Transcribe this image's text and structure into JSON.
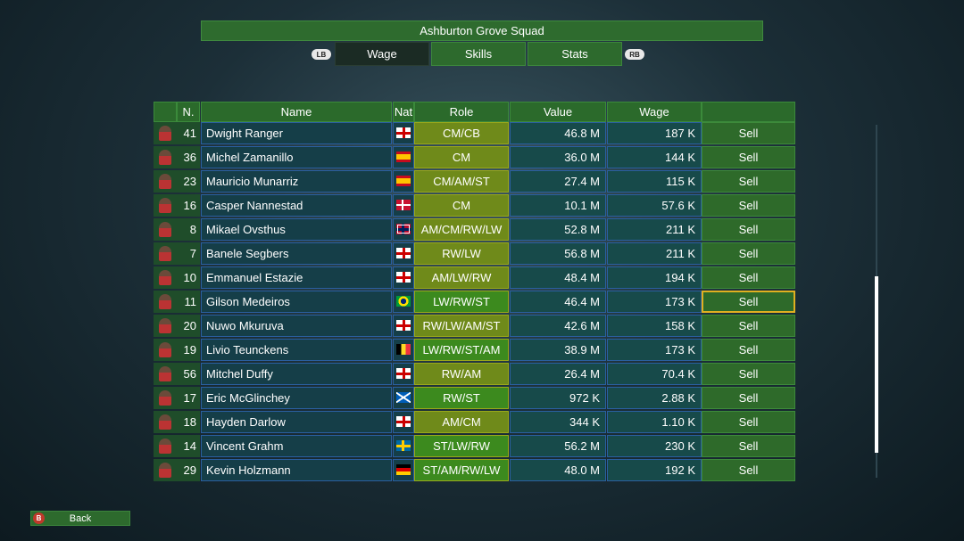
{
  "header": {
    "title": "Ashburton Grove Squad"
  },
  "bumpers": [
    "LB",
    "RB"
  ],
  "tabs": [
    "Wage",
    "Skills",
    "Stats"
  ],
  "table": {
    "columns": [
      "N.",
      "Name",
      "Nat",
      "Role",
      "Value",
      "Wage"
    ],
    "rows": [
      [
        41,
        "Dwight Ranger",
        "CM/CB",
        "46.8 M",
        "187 K",
        "Sell"
      ],
      [
        36,
        "Michel Zamanillo",
        "CM",
        "36.0 M",
        "144 K",
        "Sell"
      ],
      [
        23,
        "Mauricio Munarriz",
        "CM/AM/ST",
        "27.4 M",
        "115 K",
        "Sell"
      ],
      [
        16,
        "Casper Nannestad",
        "CM",
        "10.1 M",
        "57.6 K",
        "Sell"
      ],
      [
        8,
        "Mikael Ovsthus",
        "AM/CM/RW/LW",
        "52.8 M",
        "211 K",
        "Sell"
      ],
      [
        7,
        "Banele Segbers",
        "RW/LW",
        "56.8 M",
        "211 K",
        "Sell"
      ],
      [
        10,
        "Emmanuel Estazie",
        "AM/LW/RW",
        "48.4 M",
        "194 K",
        "Sell"
      ],
      [
        11,
        "Gilson Medeiros",
        "LW/RW/ST",
        "46.4 M",
        "173 K",
        "Sell"
      ],
      [
        20,
        "Nuwo Mkuruva",
        "RW/LW/AM/ST",
        "42.6 M",
        "158 K",
        "Sell"
      ],
      [
        19,
        "Livio Teunckens",
        "LW/RW/ST/AM",
        "38.9 M",
        "173 K",
        "Sell"
      ],
      [
        56,
        "Mitchel Duffy",
        "RW/AM",
        "26.4 M",
        "70.4 K",
        "Sell"
      ],
      [
        17,
        "Eric McGlinchey",
        "RW/ST",
        "972 K",
        "2.88 K",
        "Sell"
      ],
      [
        18,
        "Hayden Darlow",
        "AM/CM",
        "344 K",
        "1.10 K",
        "Sell"
      ],
      [
        14,
        "Vincent Grahm",
        "ST/LW/RW",
        "56.2 M",
        "230 K",
        "Sell"
      ],
      [
        29,
        "Kevin Holzmann",
        "ST/AM/RW/LW",
        "48.0 M",
        "192 K",
        "Sell"
      ]
    ]
  },
  "back": {
    "button": "B",
    "label": "Back"
  }
}
